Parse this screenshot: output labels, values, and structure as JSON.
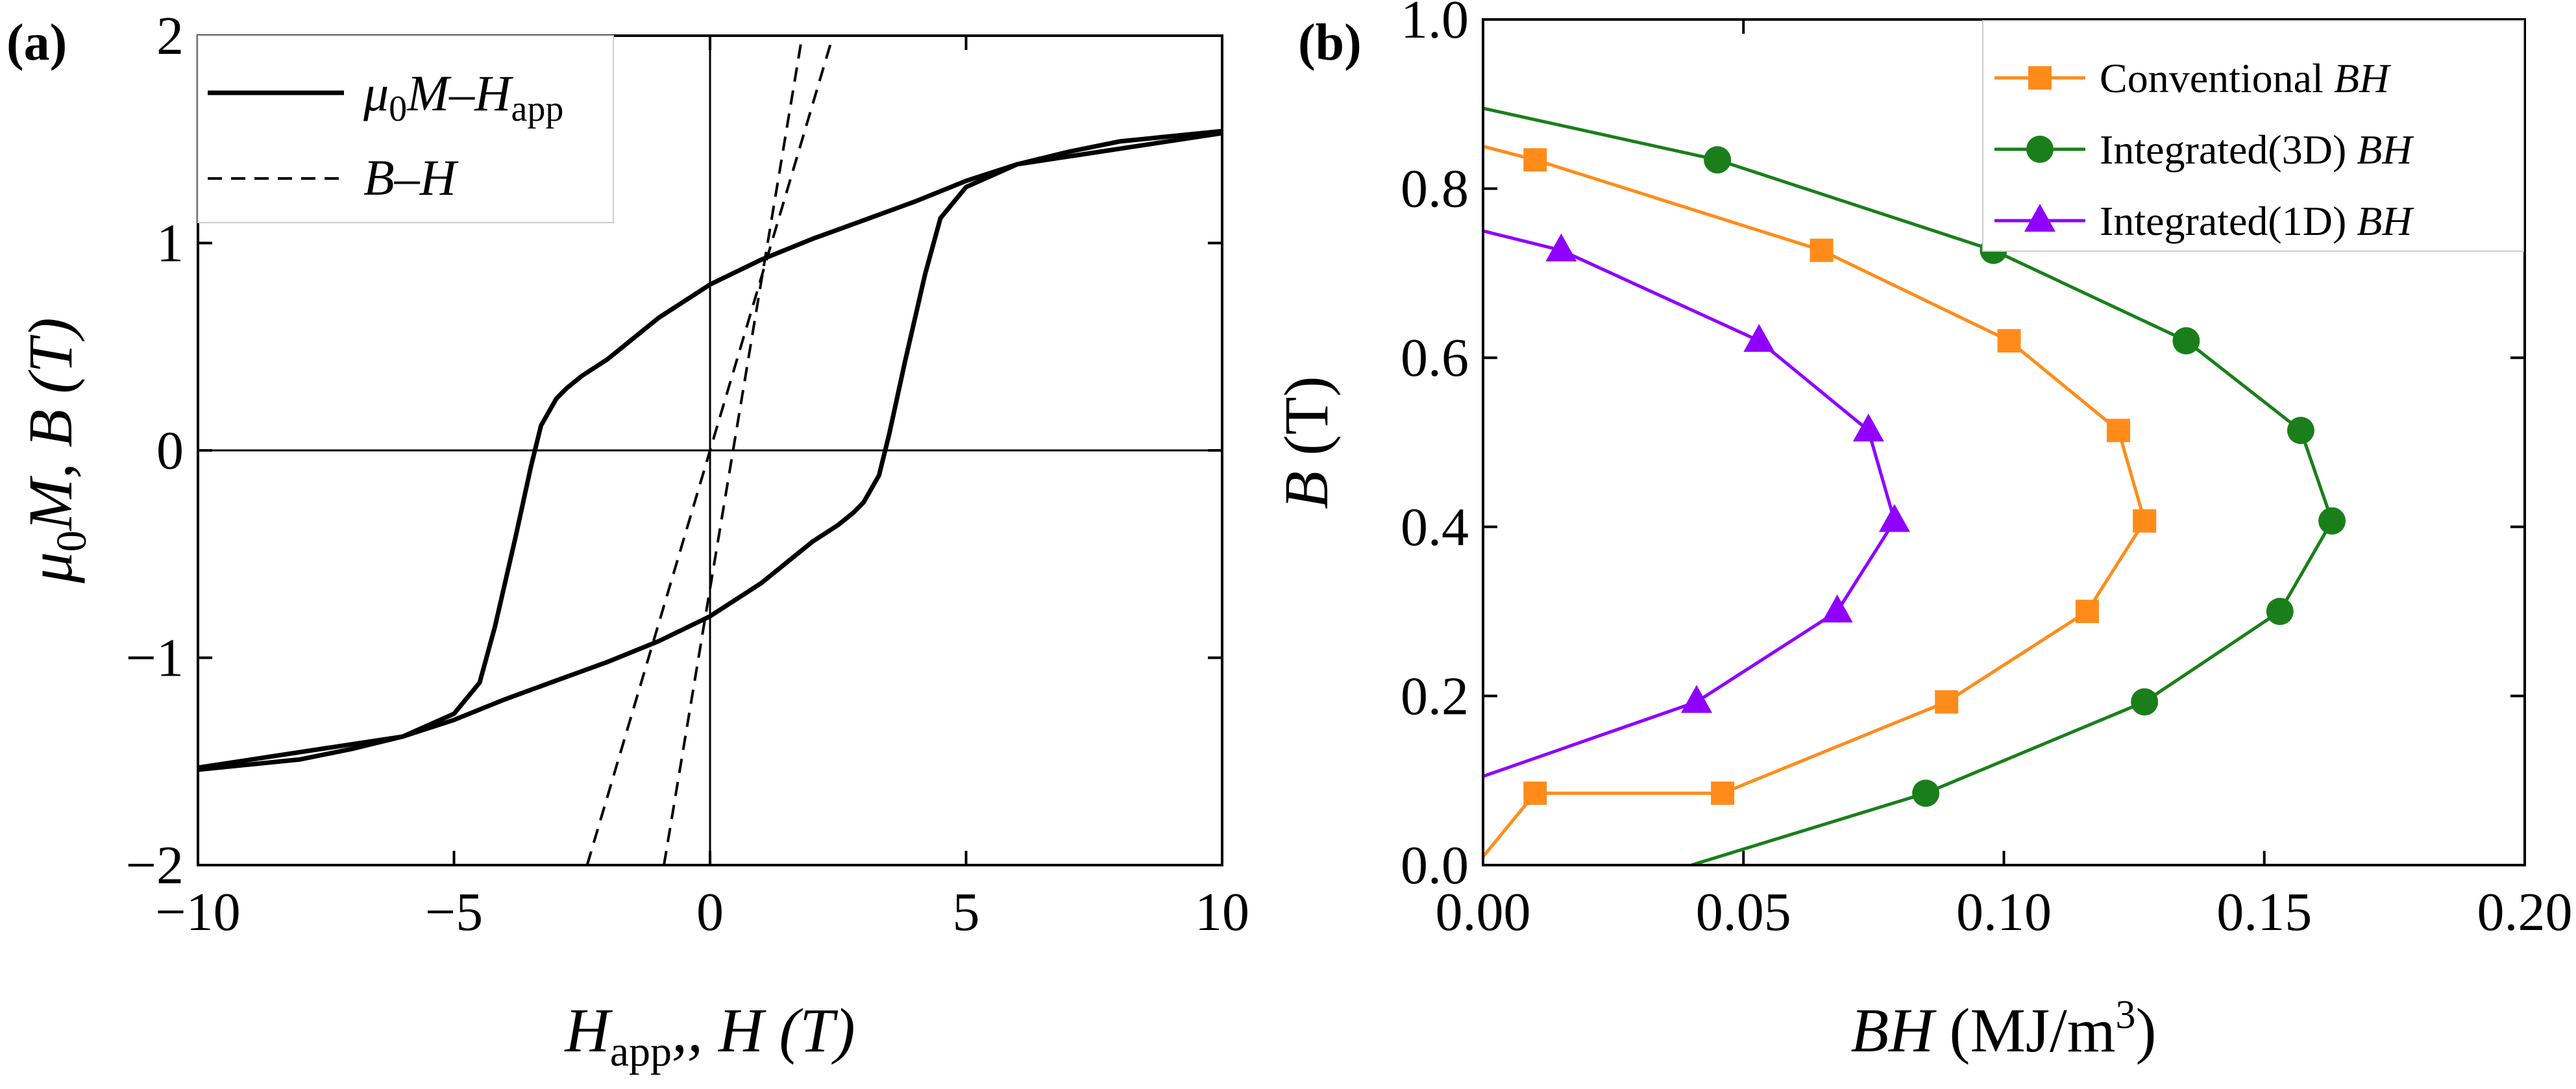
{
  "chart_data": [
    {
      "panel": "(a)",
      "type": "line",
      "xlabel": {
        "main": "H",
        "sub": "app",
        "rest": ", H (T)"
      },
      "ylabel": {
        "mu": "μ",
        "sub": "0",
        "rest": "M, B (T)"
      },
      "xlim": [
        -10,
        10
      ],
      "ylim": [
        -2,
        2
      ],
      "xticks": [
        -10,
        -5,
        0,
        5,
        10
      ],
      "yticks": [
        -2,
        -1,
        0,
        1,
        2
      ],
      "xtick_labels": [
        "−10",
        "−5",
        "0",
        "5",
        "10"
      ],
      "ytick_labels": [
        "−2",
        "−1",
        "0",
        "1",
        "2"
      ],
      "legend": [
        {
          "label": "μ0M–Happ",
          "style": "solid"
        },
        {
          "label": "B–H",
          "style": "dashed"
        }
      ],
      "legend_text": {
        "mh": {
          "mu": "μ",
          "sub0": "0",
          "m": "M–H",
          "sub_app": "app"
        },
        "bh": "B–H"
      },
      "series": [
        {
          "name": "μ0M–Happ (upper branch)",
          "style": "solid",
          "x": [
            -10,
            -6,
            -5,
            -4.5,
            -4.2,
            -3.8,
            -3.5,
            -3.3,
            -3.0,
            -2.8,
            -2.5,
            -2,
            -1,
            0,
            1,
            2,
            3,
            4,
            5,
            6,
            7,
            8,
            10
          ],
          "y": [
            -1.53,
            -1.38,
            -1.27,
            -1.12,
            -0.85,
            -0.42,
            -0.08,
            0.12,
            0.25,
            0.3,
            0.36,
            0.44,
            0.64,
            0.8,
            0.92,
            1.02,
            1.11,
            1.2,
            1.3,
            1.38,
            1.44,
            1.49,
            1.54
          ]
        },
        {
          "name": "μ0M–Happ (lower branch)",
          "style": "solid",
          "x": [
            10,
            6,
            5,
            4.5,
            4.2,
            3.8,
            3.5,
            3.3,
            3.0,
            2.8,
            2.5,
            2,
            1,
            0,
            -1,
            -2,
            -3,
            -4,
            -5,
            -6,
            -7,
            -8,
            -10
          ],
          "y": [
            1.53,
            1.38,
            1.27,
            1.12,
            0.85,
            0.42,
            0.08,
            -0.12,
            -0.25,
            -0.3,
            -0.36,
            -0.44,
            -0.64,
            -0.8,
            -0.92,
            -1.02,
            -1.11,
            -1.2,
            -1.3,
            -1.38,
            -1.44,
            -1.49,
            -1.54
          ]
        },
        {
          "name": "B–H (branch 1)",
          "style": "dashed",
          "x": [
            -2.4,
            2.4
          ],
          "y": [
            -2.0,
            2.0
          ]
        },
        {
          "name": "B–H (branch 2)",
          "style": "dashed",
          "x": [
            -0.9,
            1.8
          ],
          "y": [
            -2.0,
            2.0
          ]
        }
      ]
    },
    {
      "panel": "(b)",
      "type": "line",
      "xlabel": {
        "main": "BH",
        "rest": " (MJ/m",
        "sup": "3",
        "close": ")"
      },
      "ylabel": {
        "main": "B",
        "rest": " (T)"
      },
      "xlim": [
        0.0,
        0.2
      ],
      "ylim": [
        0.0,
        1.0
      ],
      "xticks": [
        0.0,
        0.05,
        0.1,
        0.15,
        0.2
      ],
      "yticks": [
        0.0,
        0.2,
        0.4,
        0.6,
        0.8,
        1.0
      ],
      "xtick_labels": [
        "0.00",
        "0.05",
        "0.10",
        "0.15",
        "0.20"
      ],
      "ytick_labels": [
        "0.0",
        "0.2",
        "0.4",
        "0.6",
        "0.8",
        "1.0"
      ],
      "legend_placement": "top-right",
      "series": [
        {
          "name": "Conventional BH",
          "label_plain": "Conventional ",
          "label_italic": "BH",
          "color": "#ff8c1a",
          "marker": "square",
          "x": [
            0.0,
            0.01,
            0.046,
            0.089,
            0.116,
            0.127,
            0.122,
            0.101,
            0.065,
            0.01,
            0.0
          ],
          "y": [
            0.01,
            0.085,
            0.085,
            0.193,
            0.3,
            0.407,
            0.514,
            0.62,
            0.727,
            0.834,
            0.85
          ],
          "marker_points": [
            1,
            2,
            3,
            4,
            5,
            6,
            7,
            8,
            9
          ]
        },
        {
          "name": "Integrated(3D) BH",
          "label_plain": "Integrated(3D) ",
          "label_italic": "BH",
          "color": "#1a7f1a",
          "marker": "circle",
          "x": [
            0.04,
            0.085,
            0.127,
            0.153,
            0.163,
            0.157,
            0.135,
            0.098,
            0.045,
            0.0
          ],
          "y": [
            0.0,
            0.085,
            0.193,
            0.3,
            0.407,
            0.514,
            0.62,
            0.727,
            0.834,
            0.895
          ],
          "marker_points": [
            1,
            2,
            3,
            4,
            5,
            6,
            7,
            8
          ]
        },
        {
          "name": "Integrated(1D) BH",
          "label_plain": "Integrated(1D) ",
          "label_italic": "BH",
          "color": "#8f00ff",
          "marker": "triangle",
          "x": [
            0.0,
            0.041,
            0.068,
            0.079,
            0.074,
            0.053,
            0.015,
            0.0
          ],
          "y": [
            0.105,
            0.193,
            0.3,
            0.407,
            0.514,
            0.62,
            0.727,
            0.75
          ],
          "marker_points": [
            1,
            2,
            3,
            4,
            5,
            6
          ]
        }
      ]
    }
  ]
}
